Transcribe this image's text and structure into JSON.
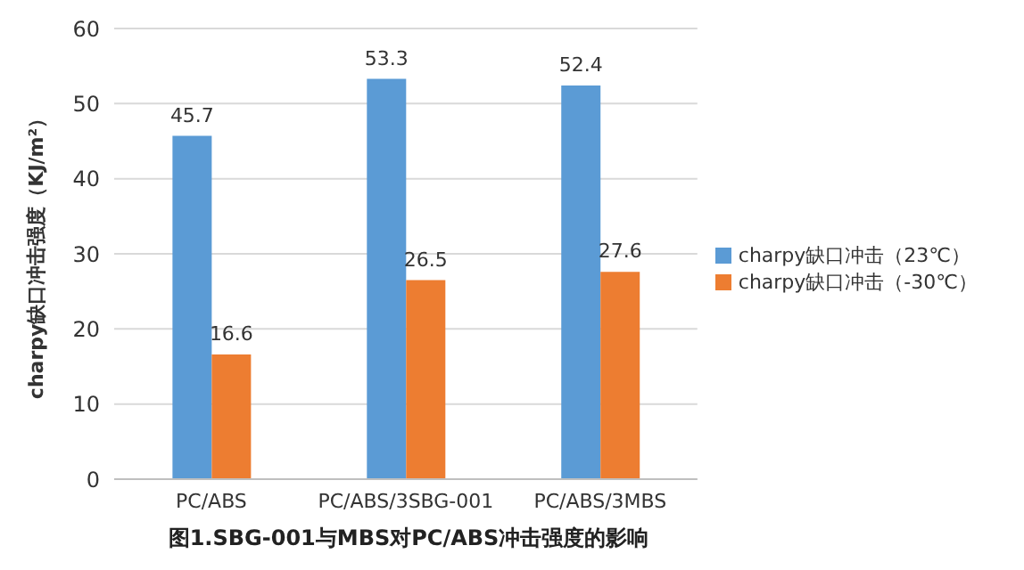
{
  "chart_data": {
    "type": "bar",
    "title": "图1.SBG-001与MBS对PC/ABS冲击强度的影响",
    "ylabel": "charpy缺口冲击强度（KJ/m²）",
    "categories": [
      "PC/ABS",
      "PC/ABS/3SBG-001",
      "PC/ABS/3MBS"
    ],
    "series": [
      {
        "name": "charpy缺口冲击（23℃）",
        "color": "#5b9bd5",
        "values": [
          45.7,
          53.3,
          52.4
        ]
      },
      {
        "name": "charpy缺口冲击（-30℃）",
        "color": "#ed7d31",
        "values": [
          16.6,
          26.5,
          27.6
        ]
      }
    ],
    "ylim": [
      0,
      60
    ],
    "yticks": [
      0,
      10,
      20,
      30,
      40,
      50,
      60
    ],
    "grid": "y",
    "legend": "right",
    "data_labels": true
  }
}
